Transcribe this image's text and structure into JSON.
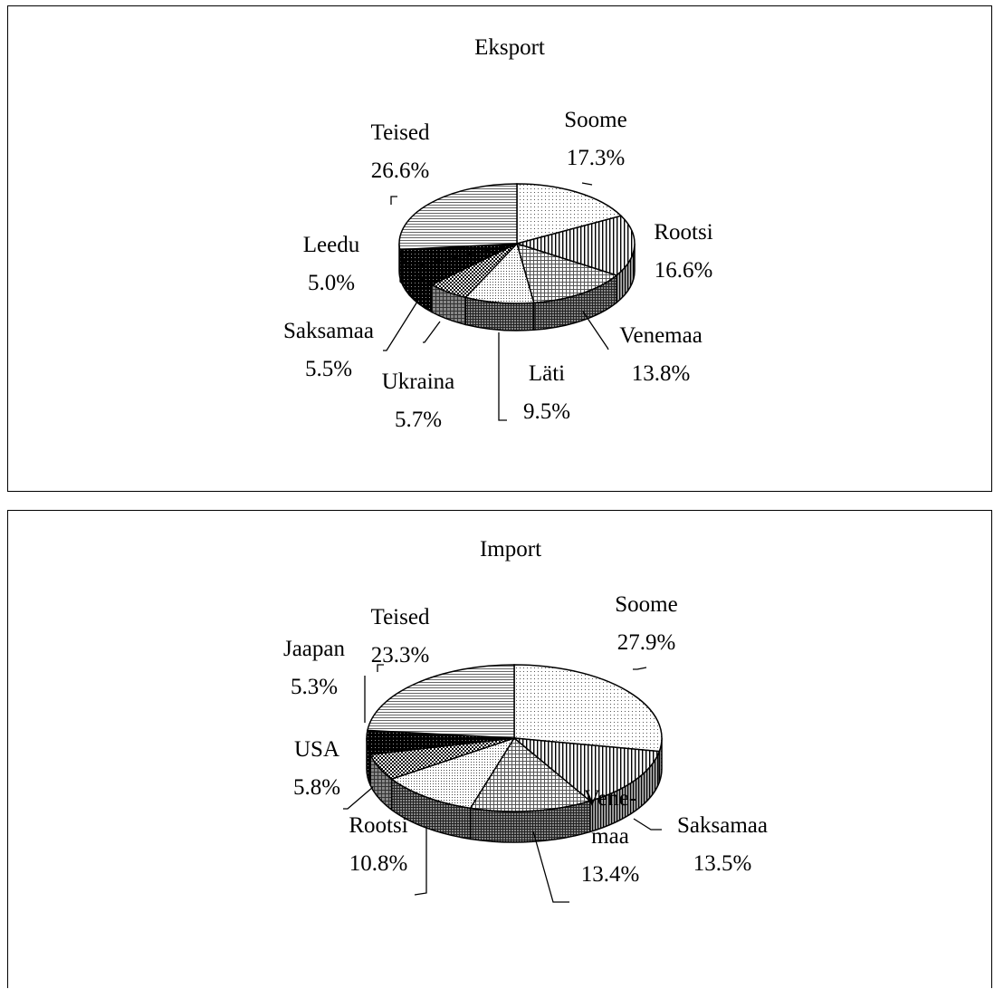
{
  "chart_data": [
    {
      "type": "pie",
      "title": "Eksport",
      "slices": [
        {
          "label": "Soome",
          "value": 17.3,
          "value_text": "17.3%"
        },
        {
          "label": "Rootsi",
          "value": 16.6,
          "value_text": "16.6%"
        },
        {
          "label": "Venemaa",
          "value": 13.8,
          "value_text": "13.8%"
        },
        {
          "label": "Läti",
          "value": 9.5,
          "value_text": "9.5%"
        },
        {
          "label": "Ukraina",
          "value": 5.7,
          "value_text": "5.7%"
        },
        {
          "label": "Saksamaa",
          "value": 5.5,
          "value_text": "5.5%"
        },
        {
          "label": "Leedu",
          "value": 5.0,
          "value_text": "5.0%"
        },
        {
          "label": "Teised",
          "value": 26.6,
          "value_text": "26.6%"
        }
      ]
    },
    {
      "type": "pie",
      "title": "Import",
      "slices": [
        {
          "label": "Soome",
          "value": 27.9,
          "value_text": "27.9%"
        },
        {
          "label": "Saksamaa",
          "value": 13.5,
          "value_text": "13.5%"
        },
        {
          "label": "Vene-\nmaa",
          "value": 13.4,
          "value_text": "13.4%"
        },
        {
          "label": "Rootsi",
          "value": 10.8,
          "value_text": "10.8%"
        },
        {
          "label": "USA",
          "value": 5.8,
          "value_text": "5.8%"
        },
        {
          "label": "Jaapan",
          "value": 5.3,
          "value_text": "5.3%"
        },
        {
          "label": "Teised",
          "value": 23.3,
          "value_text": "23.3%"
        }
      ]
    }
  ]
}
